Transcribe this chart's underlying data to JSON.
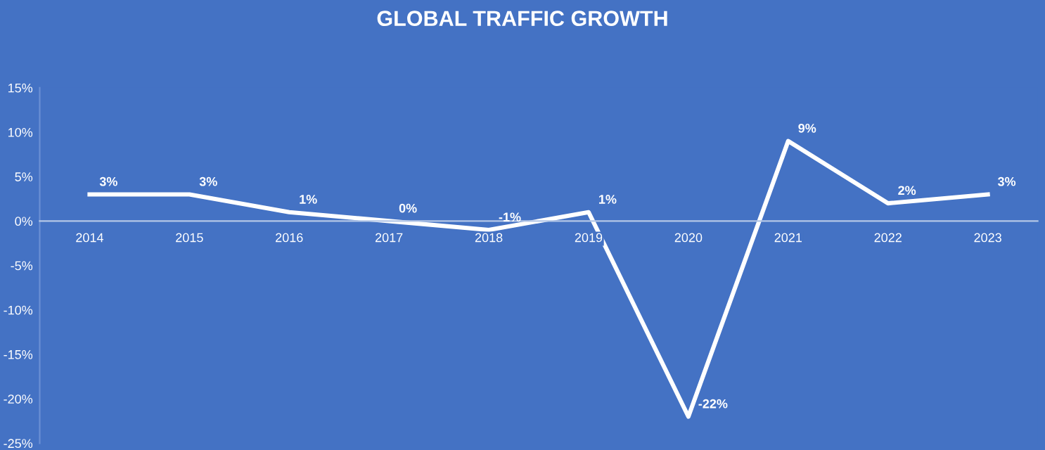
{
  "chart_data": {
    "type": "line",
    "title": "GLOBAL TRAFFIC GROWTH",
    "categories": [
      "2014",
      "2015",
      "2016",
      "2017",
      "2018",
      "2019",
      "2020",
      "2021",
      "2022",
      "2023"
    ],
    "series": [
      {
        "color": "#ffffff",
        "values": [
          3,
          3,
          1,
          0,
          -1,
          1,
          -22,
          9,
          2,
          3
        ],
        "value_labels": [
          "3%",
          "3%",
          "1%",
          "0%",
          "-1%",
          "1%",
          "-22%",
          "9%",
          "2%",
          "3%"
        ]
      }
    ],
    "ylim": [
      -25,
      15
    ],
    "yticks": [
      {
        "value": -25,
        "label": "-25%"
      },
      {
        "value": -20,
        "label": "-20%"
      },
      {
        "value": -15,
        "label": "-15%"
      },
      {
        "value": -10,
        "label": "-10%"
      },
      {
        "value": -5,
        "label": "-5%"
      },
      {
        "value": 0,
        "label": "0%"
      },
      {
        "value": 5,
        "label": "5%"
      },
      {
        "value": 10,
        "label": "10%"
      },
      {
        "value": 15,
        "label": "15%"
      }
    ],
    "grid": false,
    "legend": false,
    "marker": "none",
    "line_style": "solid"
  }
}
